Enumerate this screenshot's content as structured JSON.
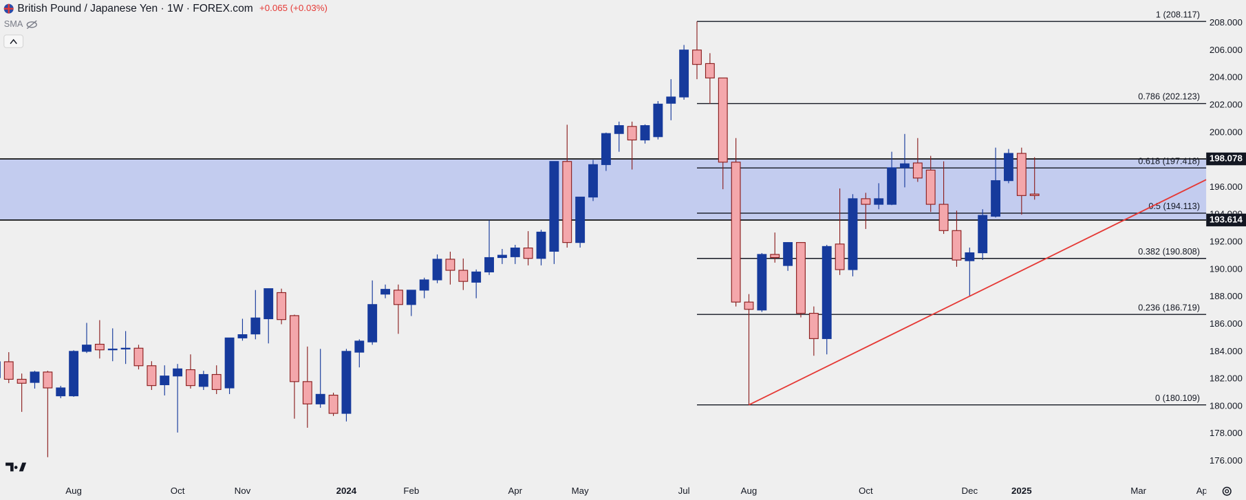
{
  "chart_data": {
    "type": "candlestick",
    "title": "British Pound / Japanese Yen · 1W · FOREX.com",
    "annotations": [
      "+0.065 (+0.03%)",
      "SMA"
    ],
    "categories": [
      null,
      null,
      null,
      null,
      null,
      null,
      "Aug",
      null,
      null,
      null,
      null,
      null,
      null,
      null,
      "Oct",
      null,
      null,
      null,
      null,
      "Nov",
      null,
      null,
      null,
      null,
      null,
      null,
      null,
      "2024",
      null,
      null,
      null,
      null,
      "Feb",
      null,
      null,
      null,
      null,
      null,
      null,
      null,
      "Apr",
      null,
      null,
      null,
      null,
      "May",
      null,
      null,
      null,
      null,
      null,
      null,
      null,
      "Jul",
      null,
      null,
      null,
      null,
      "Aug",
      null,
      null,
      null,
      null,
      null,
      null,
      null,
      null,
      "Oct",
      null,
      null,
      null,
      null,
      null,
      null,
      null,
      "Dec",
      null,
      null,
      null,
      "2025",
      null,
      null,
      null,
      null,
      null,
      null,
      null,
      null,
      "Mar",
      null,
      null,
      null,
      null,
      "Apr"
    ],
    "open": [
      182.1,
      183.26,
      181.98,
      181.75,
      182.51,
      180.77,
      180.77,
      184.02,
      184.54,
      184.13,
      184.19,
      184.25,
      182.97,
      181.58,
      182.22,
      182.68,
      181.46,
      182.33,
      181.35,
      185.0,
      185.29,
      186.4,
      188.31,
      186.63,
      181.81,
      180.18,
      180.82,
      179.49,
      183.96,
      184.71,
      188.2,
      188.49,
      187.44,
      188.49,
      189.24,
      190.75,
      189.94,
      189.07,
      189.82,
      190.87,
      190.93,
      191.57,
      190.81,
      191.33,
      197.89,
      191.97,
      195.29,
      197.66,
      199.93,
      200.45,
      199.46,
      199.7,
      202.14,
      202.6,
      206.03,
      205.04,
      203.99,
      197.84,
      187.62,
      187.04,
      191.1,
      190.29,
      191.97,
      186.8,
      184.95,
      191.86,
      189.99,
      195.17,
      194.76,
      194.76,
      197.43,
      197.78,
      197.26,
      194.76,
      192.84,
      190.64,
      191.22,
      193.89,
      196.49,
      198.48,
      195.51,
      null,
      null,
      null,
      null,
      null,
      null,
      null,
      null,
      null,
      null,
      null,
      null,
      null
    ],
    "high": [
      184.0,
      183.96,
      182.4,
      182.6,
      182.6,
      181.5,
      184.1,
      186.1,
      186.3,
      185.7,
      185.5,
      184.5,
      183.3,
      183.0,
      183.1,
      183.8,
      182.6,
      183.0,
      185.0,
      186.4,
      188.5,
      188.6,
      188.6,
      186.7,
      184.37,
      184.2,
      181.0,
      184.2,
      184.9,
      189.2,
      188.9,
      188.9,
      188.5,
      189.4,
      191.1,
      191.3,
      190.8,
      190.0,
      193.6,
      191.5,
      191.8,
      192.8,
      192.9,
      197.9,
      200.57,
      195.3,
      198.0,
      200.0,
      200.8,
      200.8,
      200.6,
      202.3,
      203.9,
      206.4,
      208.117,
      205.8,
      204.0,
      199.6,
      188.2,
      191.2,
      192.7,
      192.0,
      192.0,
      187.3,
      191.8,
      195.92,
      195.5,
      195.6,
      196.3,
      198.6,
      199.9,
      199.6,
      198.3,
      197.9,
      194.3,
      191.6,
      194.4,
      198.9,
      198.8,
      198.9,
      198.2,
      null,
      null,
      null,
      null,
      null,
      null,
      null,
      null,
      null,
      null,
      null,
      null,
      null
    ],
    "low": [
      181.8,
      181.7,
      179.6,
      181.3,
      176.29,
      180.6,
      180.7,
      183.9,
      183.5,
      183.3,
      183.1,
      182.7,
      181.2,
      180.8,
      178.09,
      181.3,
      181.2,
      180.9,
      180.9,
      184.8,
      184.9,
      184.6,
      186.0,
      179.1,
      178.44,
      179.9,
      179.3,
      178.9,
      182.85,
      184.5,
      187.9,
      185.3,
      186.6,
      187.9,
      189.0,
      188.9,
      188.5,
      187.9,
      189.6,
      190.4,
      190.4,
      190.3,
      190.3,
      190.4,
      191.6,
      191.6,
      195.0,
      197.2,
      198.6,
      197.3,
      199.2,
      199.5,
      200.9,
      202.4,
      203.9,
      202.1,
      195.86,
      187.3,
      180.109,
      186.9,
      190.5,
      189.9,
      186.5,
      183.7,
      183.8,
      189.6,
      189.5,
      192.96,
      194.4,
      194.7,
      196.0,
      196.4,
      194.2,
      192.6,
      190.2,
      188.05,
      190.7,
      193.8,
      196.3,
      194.0,
      195.1,
      null,
      null,
      null,
      null,
      null,
      null,
      null,
      null,
      null,
      null,
      null,
      null,
      null
    ],
    "close": [
      183.26,
      181.98,
      181.69,
      182.51,
      181.35,
      181.35,
      184.02,
      184.48,
      184.13,
      184.19,
      184.25,
      182.97,
      181.52,
      182.22,
      182.74,
      181.52,
      182.33,
      181.23,
      185.0,
      185.24,
      186.46,
      188.6,
      186.34,
      181.81,
      180.18,
      180.88,
      179.49,
      184.02,
      184.77,
      187.44,
      188.55,
      187.44,
      188.49,
      189.24,
      190.75,
      189.94,
      189.13,
      189.82,
      190.87,
      191.04,
      191.57,
      190.81,
      192.73,
      197.89,
      191.97,
      195.29,
      197.66,
      199.93,
      200.51,
      199.46,
      200.51,
      202.08,
      202.6,
      206.03,
      204.98,
      203.99,
      197.84,
      187.62,
      187.09,
      191.1,
      190.87,
      191.97,
      186.8,
      184.95,
      191.68,
      189.99,
      195.17,
      194.76,
      195.17,
      197.43,
      197.72,
      196.68,
      194.76,
      192.84,
      190.69,
      191.22,
      193.95,
      196.49,
      198.48,
      195.4,
      195.4,
      null,
      null,
      null,
      null,
      null,
      null,
      null,
      null,
      null,
      null,
      null,
      null,
      null
    ],
    "up_color": "#163a9c",
    "down_color": "#f4a7ab",
    "down_border": "#8b1f1f",
    "ylim": [
      174.73,
      209.684
    ],
    "yticks": [
      {
        "value": 176,
        "label": "176.000"
      },
      {
        "value": 178,
        "label": "178.000"
      },
      {
        "value": 180,
        "label": "180.000"
      },
      {
        "value": 182,
        "label": "182.000"
      },
      {
        "value": 184,
        "label": "184.000"
      },
      {
        "value": 186,
        "label": "186.000"
      },
      {
        "value": 188,
        "label": "188.000"
      },
      {
        "value": 190,
        "label": "190.000"
      },
      {
        "value": 192,
        "label": "192.000"
      },
      {
        "value": 194,
        "label": "194.000"
      },
      {
        "value": 196,
        "label": "196.000"
      },
      {
        "value": 198,
        "label": "198.000"
      },
      {
        "value": 200,
        "label": "200.000"
      },
      {
        "value": 202,
        "label": "202.000"
      },
      {
        "value": 204,
        "label": "204.000"
      },
      {
        "value": 206,
        "label": "206.000"
      },
      {
        "value": 208,
        "label": "208.000"
      }
    ],
    "grid": false,
    "zone": {
      "low": 193.614,
      "high": 198.078,
      "color": "#c3ccef"
    },
    "fibonacci": {
      "levels": [
        {
          "value": 208.117,
          "label": "1 (208.117)"
        },
        {
          "value": 202.123,
          "label": "0.786 (202.123)"
        },
        {
          "value": 197.418,
          "label": "0.618 (197.418)"
        },
        {
          "value": 194.113,
          "label": "0.5 (194.113)"
        },
        {
          "value": 190.808,
          "label": "0.382 (190.808)"
        },
        {
          "value": 186.719,
          "label": "0.236 (186.719)"
        },
        {
          "value": 180.109,
          "label": "0 (180.109)"
        }
      ]
    },
    "trendline": {
      "color": "#e53935"
    }
  }
}
